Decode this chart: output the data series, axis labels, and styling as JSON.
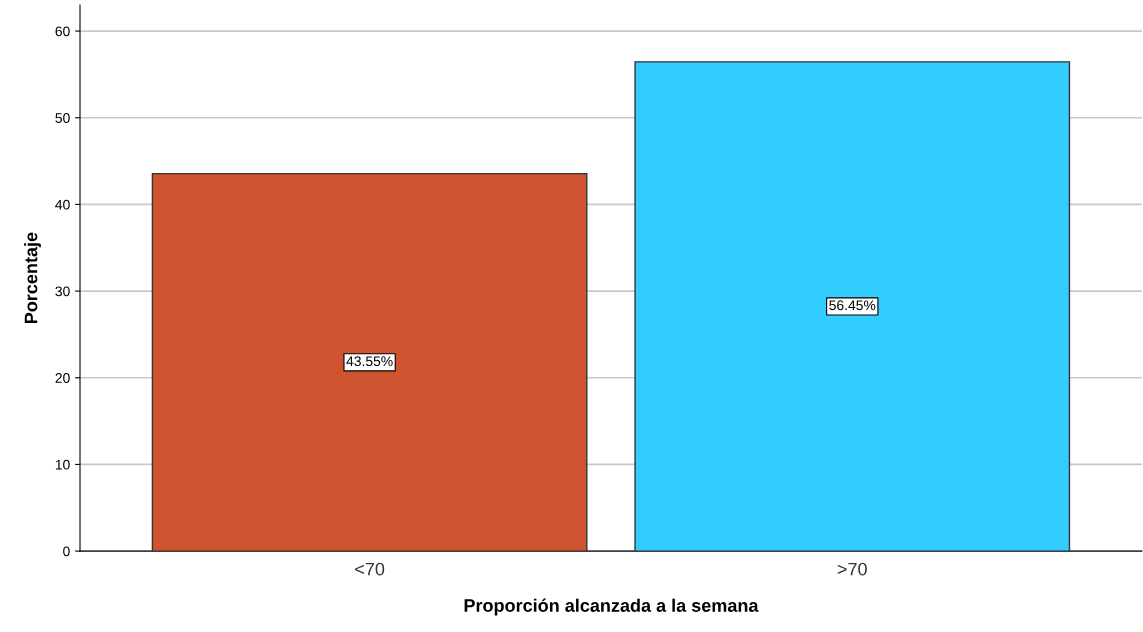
{
  "chart_data": {
    "type": "bar",
    "xlabel": "Proporción alcanzada a la semana",
    "ylabel": "Porcentaje",
    "categories": [
      "<70",
      ">70"
    ],
    "values": [
      43.55,
      56.45
    ],
    "colors": [
      "#d0532f",
      "#33ccff"
    ],
    "value_labels": [
      "43.55%",
      "56.45%"
    ],
    "ylim": [
      0,
      63
    ],
    "yticks": [
      0,
      10,
      20,
      30,
      40,
      50,
      60
    ],
    "grid": "y",
    "legend": false
  }
}
